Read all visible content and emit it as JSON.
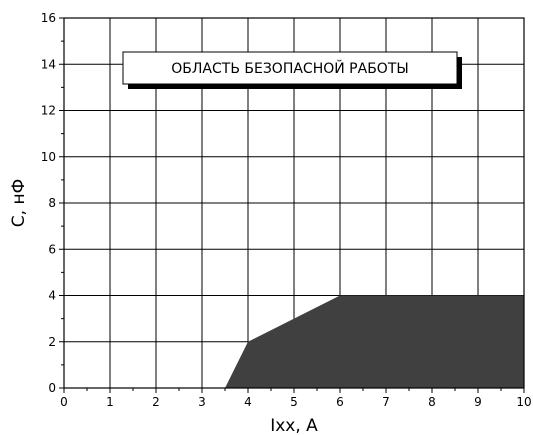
{
  "chart_data": {
    "type": "area",
    "title": "",
    "xlabel": "Ixx, A",
    "ylabel": "C, нФ",
    "xlim": [
      0,
      10
    ],
    "ylim": [
      0,
      16
    ],
    "x_ticks": [
      0,
      1,
      2,
      3,
      4,
      5,
      6,
      7,
      8,
      9,
      10
    ],
    "y_ticks": [
      0,
      2,
      4,
      6,
      8,
      10,
      12,
      14,
      16
    ],
    "grid": true,
    "series": [
      {
        "x": [
          3.5,
          4,
          6,
          10,
          10
        ],
        "y": [
          0,
          2,
          4,
          4,
          0
        ],
        "color": "#404040"
      }
    ],
    "annotation": {
      "text": "ОБЛАСТЬ БЕЗОПАСНОЙ РАБОТЫ"
    }
  }
}
